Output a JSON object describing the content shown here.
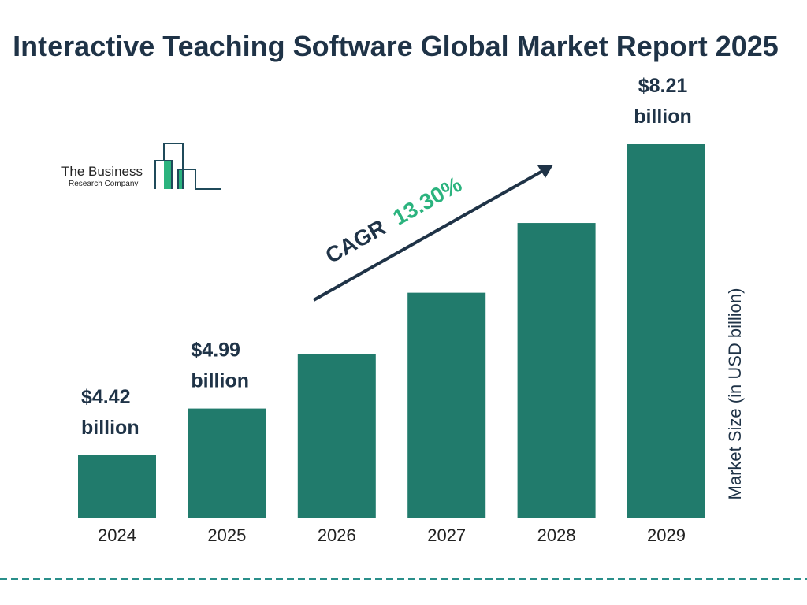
{
  "chart_data": {
    "type": "bar",
    "title": "Interactive Teaching Software Global Market Report 2025",
    "ylabel": "Market Size (in USD billion)",
    "categories": [
      "2024",
      "2025",
      "2026",
      "2027",
      "2028",
      "2029"
    ],
    "values": [
      4.42,
      4.99,
      5.65,
      6.4,
      7.25,
      8.21
    ],
    "data_labels": [
      {
        "index": 0,
        "line1": "$4.42",
        "line2": "billion"
      },
      {
        "index": 1,
        "line1": "$4.99",
        "line2": "billion"
      },
      {
        "index": 5,
        "line1": "$8.21",
        "line2": "billion"
      }
    ],
    "annotation": {
      "label": "CAGR",
      "value": "13.30%"
    },
    "grid": false,
    "colors": {
      "bar": "#217b6c",
      "title": "#1f3347",
      "cagr": "#2bb37e",
      "divider": "#2a8f8a"
    }
  },
  "logo": {
    "line1": "The Business",
    "line2": "Research Company"
  }
}
